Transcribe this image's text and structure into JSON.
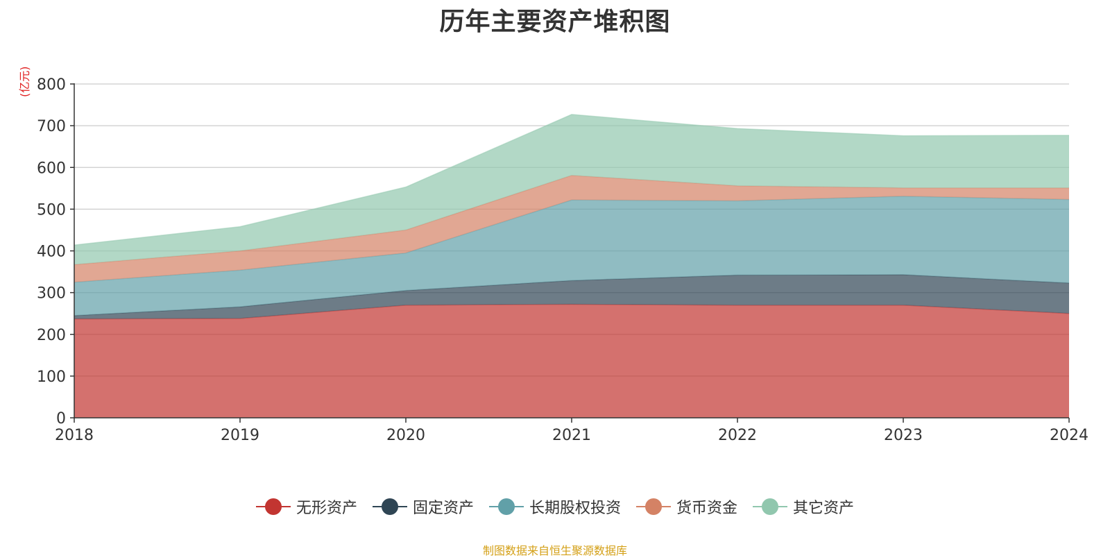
{
  "title": "历年主要资产堆积图",
  "unit": "(亿元)",
  "source": "制图数据来自恒生聚源数据库",
  "chart_data": {
    "type": "area",
    "stacked": true,
    "title": "历年主要资产堆积图",
    "ylabel": "(亿元)",
    "xlabel": "",
    "x": [
      "2018",
      "2019",
      "2020",
      "2021",
      "2022",
      "2023",
      "2024"
    ],
    "ylim": [
      0,
      800
    ],
    "yticks": [
      0,
      100,
      200,
      300,
      400,
      500,
      600,
      700,
      800
    ],
    "grid": true,
    "legend_position": "bottom",
    "series": [
      {
        "name": "无形资产",
        "color": "#c23531",
        "values": [
          237,
          238,
          270,
          272,
          270,
          270,
          250
        ]
      },
      {
        "name": "固定资产",
        "color": "#2f4554",
        "values": [
          8,
          28,
          35,
          57,
          72,
          73,
          73
        ]
      },
      {
        "name": "长期股权投资",
        "color": "#61a0a8",
        "values": [
          80,
          88,
          90,
          193,
          178,
          188,
          200
        ]
      },
      {
        "name": "货币资金",
        "color": "#d48265",
        "values": [
          42,
          46,
          55,
          59,
          36,
          20,
          28
        ]
      },
      {
        "name": "其它资产",
        "color": "#91c7ae",
        "values": [
          47,
          58,
          103,
          146,
          137,
          125,
          126
        ]
      }
    ]
  }
}
